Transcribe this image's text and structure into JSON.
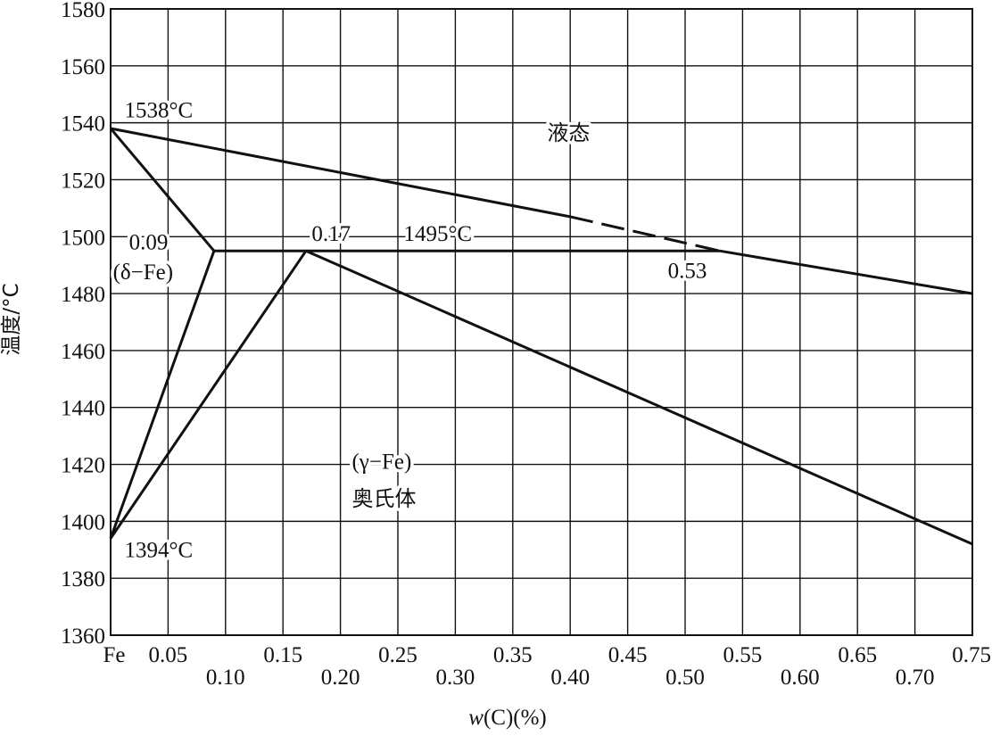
{
  "chart_data": {
    "type": "line",
    "xlabel_italic": "w",
    "xlabel_rest": "(C)(%)",
    "ylabel": "温度/°C",
    "xlim": [
      0,
      0.75
    ],
    "ylim": [
      1360,
      1580
    ],
    "grid": true,
    "x_ticks_upper": [
      {
        "value": 0,
        "label": "Fe"
      },
      {
        "value": 0.05,
        "label": "0.05"
      },
      {
        "value": 0.15,
        "label": "0.15"
      },
      {
        "value": 0.25,
        "label": "0.25"
      },
      {
        "value": 0.35,
        "label": "0.35"
      },
      {
        "value": 0.45,
        "label": "0.45"
      },
      {
        "value": 0.55,
        "label": "0.55"
      },
      {
        "value": 0.65,
        "label": "0.65"
      },
      {
        "value": 0.75,
        "label": "0.75"
      }
    ],
    "x_ticks_lower": [
      {
        "value": 0.1,
        "label": "0.10"
      },
      {
        "value": 0.2,
        "label": "0.20"
      },
      {
        "value": 0.3,
        "label": "0.30"
      },
      {
        "value": 0.4,
        "label": "0.40"
      },
      {
        "value": 0.5,
        "label": "0.50"
      },
      {
        "value": 0.6,
        "label": "0.60"
      },
      {
        "value": 0.7,
        "label": "0.70"
      }
    ],
    "y_ticks": [
      1360,
      1380,
      1400,
      1420,
      1440,
      1460,
      1480,
      1500,
      1520,
      1540,
      1560,
      1580
    ],
    "lines": [
      {
        "points": [
          [
            0,
            1538
          ],
          [
            0.09,
            1495
          ]
        ],
        "dashed": false
      },
      {
        "points": [
          [
            0.09,
            1495
          ],
          [
            0,
            1394
          ]
        ],
        "dashed": false
      },
      {
        "points": [
          [
            0.17,
            1495
          ],
          [
            0,
            1394
          ]
        ],
        "dashed": false
      },
      {
        "points": [
          [
            0.09,
            1495
          ],
          [
            0.53,
            1495
          ]
        ],
        "dashed": false
      },
      {
        "points": [
          [
            0,
            1538
          ],
          [
            0.4,
            1507
          ]
        ],
        "dashed": false
      },
      {
        "points": [
          [
            0.4,
            1507
          ],
          [
            0.53,
            1495
          ]
        ],
        "dashed": true
      },
      {
        "points": [
          [
            0.53,
            1495
          ],
          [
            0.75,
            1480
          ]
        ],
        "dashed": false
      },
      {
        "points": [
          [
            0.17,
            1495
          ],
          [
            0.75,
            1392
          ]
        ],
        "dashed": false
      }
    ],
    "annotations": [
      {
        "text": "1538°C",
        "x": 0.012,
        "y": 1542
      },
      {
        "text": "液态",
        "x": 0.38,
        "y": 1534
      },
      {
        "text": "0.09",
        "x": 0.016,
        "y": 1495.5
      },
      {
        "text": "(δ−Fe)",
        "x": 0.002,
        "y": 1485
      },
      {
        "text": "0.17",
        "x": 0.175,
        "y": 1498.5
      },
      {
        "text": "1495°C",
        "x": 0.255,
        "y": 1498.5
      },
      {
        "text": "0.53",
        "x": 0.485,
        "y": 1485.5
      },
      {
        "text": "(γ−Fe)",
        "x": 0.21,
        "y": 1418.5
      },
      {
        "text": "奥氏体",
        "x": 0.21,
        "y": 1405.5
      },
      {
        "text": "1394°C",
        "x": 0.012,
        "y": 1387.5
      }
    ]
  }
}
